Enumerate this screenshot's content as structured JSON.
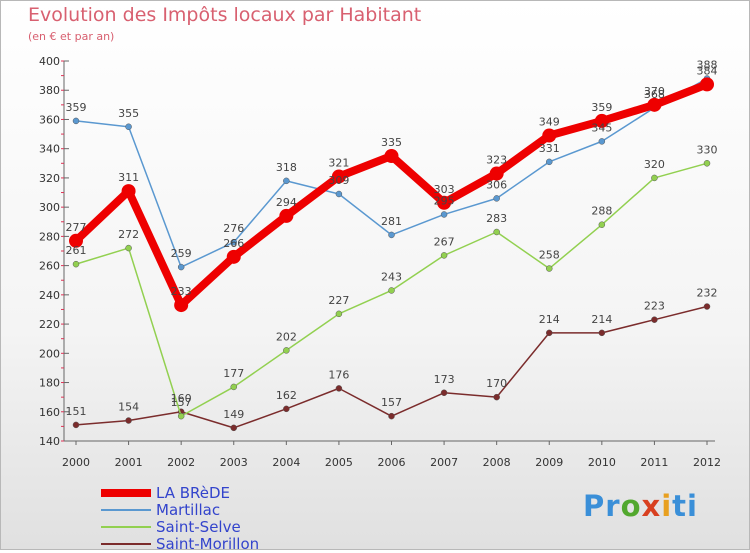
{
  "title": "Evolution des Impôts locaux par Habitant",
  "subtitle": "(en € et par an)",
  "logo": {
    "text": "Proxiti",
    "parts": [
      "Pr",
      "o",
      "x",
      "i",
      "ti"
    ]
  },
  "chart_data": {
    "type": "line",
    "title": "Evolution des Impôts locaux par Habitant",
    "subtitle": "(en € et par an)",
    "x": [
      2000,
      2001,
      2002,
      2003,
      2004,
      2005,
      2006,
      2007,
      2008,
      2009,
      2010,
      2011,
      2012
    ],
    "ylim": [
      140,
      400
    ],
    "yticks": [
      140,
      160,
      180,
      200,
      220,
      240,
      260,
      280,
      300,
      320,
      340,
      360,
      380,
      400
    ],
    "grid": false,
    "legend_position": "bottom-left",
    "series": [
      {
        "name": "LA BRèDE",
        "color": "#ee0000",
        "width": 8,
        "values": [
          277,
          311,
          233,
          266,
          294,
          321,
          335,
          303,
          323,
          349,
          359,
          370,
          384
        ]
      },
      {
        "name": "Martillac",
        "color": "#5a98d0",
        "width": 1.5,
        "values": [
          359,
          355,
          259,
          276,
          318,
          309,
          281,
          295,
          306,
          331,
          345,
          368,
          388
        ]
      },
      {
        "name": "Saint-Selve",
        "color": "#92d050",
        "width": 1.5,
        "values": [
          261,
          272,
          157,
          177,
          202,
          227,
          243,
          267,
          283,
          258,
          288,
          320,
          330
        ]
      },
      {
        "name": "Saint-Morillon",
        "color": "#7b2c2c",
        "width": 1.5,
        "values": [
          151,
          154,
          160,
          149,
          162,
          176,
          157,
          173,
          170,
          214,
          214,
          223,
          232
        ]
      }
    ]
  }
}
